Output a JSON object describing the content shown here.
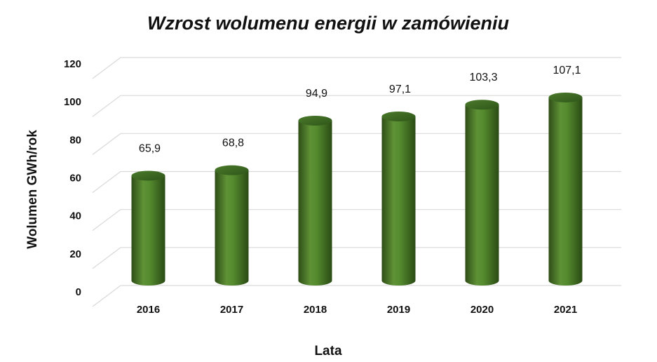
{
  "chart_data": {
    "type": "bar",
    "title": "Wzrost wolumenu energii w zamówieniu",
    "xlabel": "Lata",
    "ylabel": "Wolumen GWh/rok",
    "categories": [
      "2016",
      "2017",
      "2018",
      "2019",
      "2020",
      "2021"
    ],
    "values": [
      65.9,
      68.8,
      94.9,
      97.1,
      103.3,
      107.1
    ],
    "data_labels": [
      "65,9",
      "68,8",
      "94,9",
      "97,1",
      "103,3",
      "107,1"
    ],
    "yticks": [
      "0",
      "20",
      "40",
      "60",
      "80",
      "100",
      "120"
    ],
    "ylim": [
      0,
      120
    ],
    "grid": true,
    "legend": "none",
    "bar_style": "3d-cylinder",
    "bar_color": "#4e7d2c"
  }
}
